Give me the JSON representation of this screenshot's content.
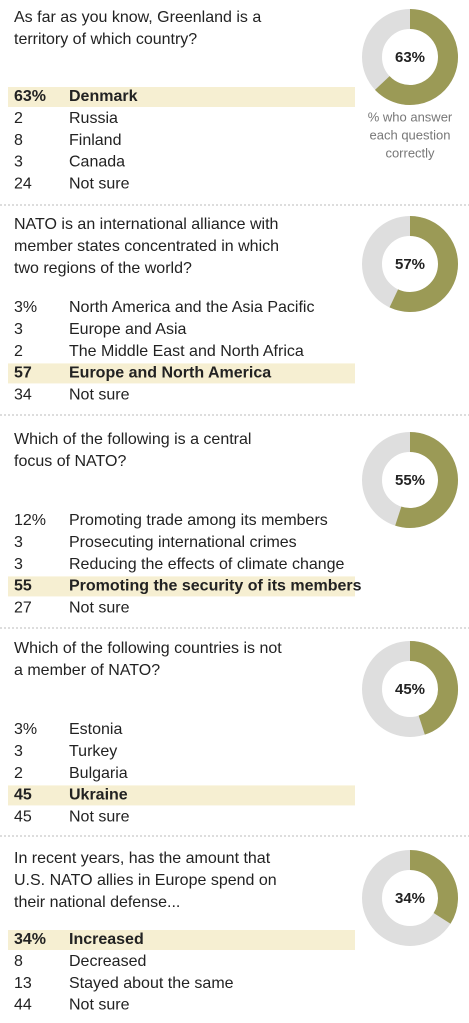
{
  "note": [
    "% who answer",
    "each question",
    "correctly"
  ],
  "questions": [
    {
      "lines": [
        "As far as you know, Greenland is a",
        "territory of which country?"
      ],
      "donut": {
        "value": 63,
        "label": "63%"
      },
      "answers": [
        {
          "pct": "63%",
          "text": "Denmark",
          "correct": true
        },
        {
          "pct": "2",
          "text": "Russia",
          "correct": false
        },
        {
          "pct": "8",
          "text": "Finland",
          "correct": false
        },
        {
          "pct": "3",
          "text": "Canada",
          "correct": false
        },
        {
          "pct": "24",
          "text": "Not sure",
          "correct": false
        }
      ]
    },
    {
      "lines": [
        "NATO is an international alliance with",
        "member states concentrated in which",
        "two regions of the world?"
      ],
      "donut": {
        "value": 57,
        "label": "57%"
      },
      "answers": [
        {
          "pct": "3%",
          "text": "North America and the Asia Pacific",
          "correct": false
        },
        {
          "pct": "3",
          "text": "Europe and Asia",
          "correct": false
        },
        {
          "pct": "2",
          "text": "The Middle East and North Africa",
          "correct": false
        },
        {
          "pct": "57",
          "text": "Europe and North America",
          "correct": true
        },
        {
          "pct": "34",
          "text": "Not sure",
          "correct": false
        }
      ]
    },
    {
      "lines": [
        "Which of the following is a central",
        "focus of NATO?"
      ],
      "donut": {
        "value": 55,
        "label": "55%"
      },
      "answers": [
        {
          "pct": "12%",
          "text": "Promoting trade among its members",
          "correct": false
        },
        {
          "pct": "3",
          "text": "Prosecuting international crimes",
          "correct": false
        },
        {
          "pct": "3",
          "text": "Reducing the effects of climate change",
          "correct": false
        },
        {
          "pct": "55",
          "text": "Promoting the security of its members",
          "correct": true
        },
        {
          "pct": "27",
          "text": "Not sure",
          "correct": false
        }
      ]
    },
    {
      "lines": [
        "Which of the following countries is not",
        "a member of NATO?"
      ],
      "donut": {
        "value": 45,
        "label": "45%"
      },
      "answers": [
        {
          "pct": "3%",
          "text": "Estonia",
          "correct": false
        },
        {
          "pct": "3",
          "text": "Turkey",
          "correct": false
        },
        {
          "pct": "2",
          "text": "Bulgaria",
          "correct": false
        },
        {
          "pct": "45",
          "text": "Ukraine",
          "correct": true
        },
        {
          "pct": "45",
          "text": "Not sure",
          "correct": false
        }
      ]
    },
    {
      "lines": [
        "In recent years, has the amount that",
        "U.S. NATO allies in Europe spend on",
        "their national defense..."
      ],
      "donut": {
        "value": 34,
        "label": "34%"
      },
      "answers": [
        {
          "pct": "34%",
          "text": "Increased",
          "correct": true
        },
        {
          "pct": "8",
          "text": "Decreased",
          "correct": false
        },
        {
          "pct": "13",
          "text": "Stayed about the same",
          "correct": false
        },
        {
          "pct": "44",
          "text": "Not sure",
          "correct": false
        }
      ]
    }
  ]
}
